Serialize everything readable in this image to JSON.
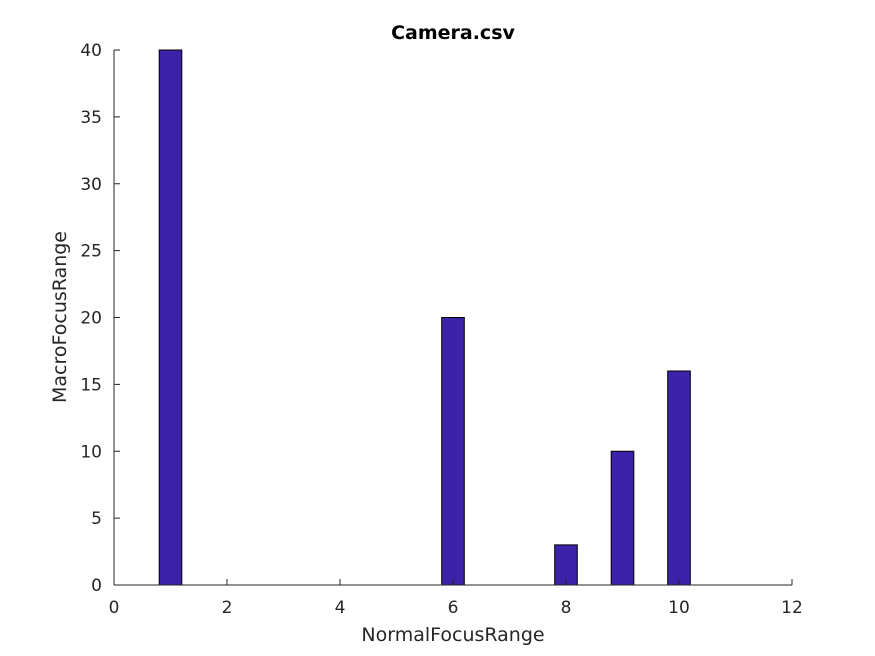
{
  "chart_data": {
    "type": "bar",
    "title": "Camera.csv",
    "xlabel": "NormalFocusRange",
    "ylabel": "MacroFocusRange",
    "xlim": [
      0,
      12
    ],
    "ylim": [
      0,
      40
    ],
    "xticks": [
      0,
      2,
      4,
      6,
      8,
      10,
      12
    ],
    "yticks": [
      0,
      5,
      10,
      15,
      20,
      25,
      30,
      35,
      40
    ],
    "x": [
      1,
      2,
      3,
      4,
      5,
      6,
      7,
      8,
      9,
      10
    ],
    "values": [
      40,
      0,
      0,
      0,
      0,
      20,
      0,
      3,
      10,
      16
    ],
    "bar_color": "#3b22a8",
    "grid": false,
    "legend": "none"
  }
}
